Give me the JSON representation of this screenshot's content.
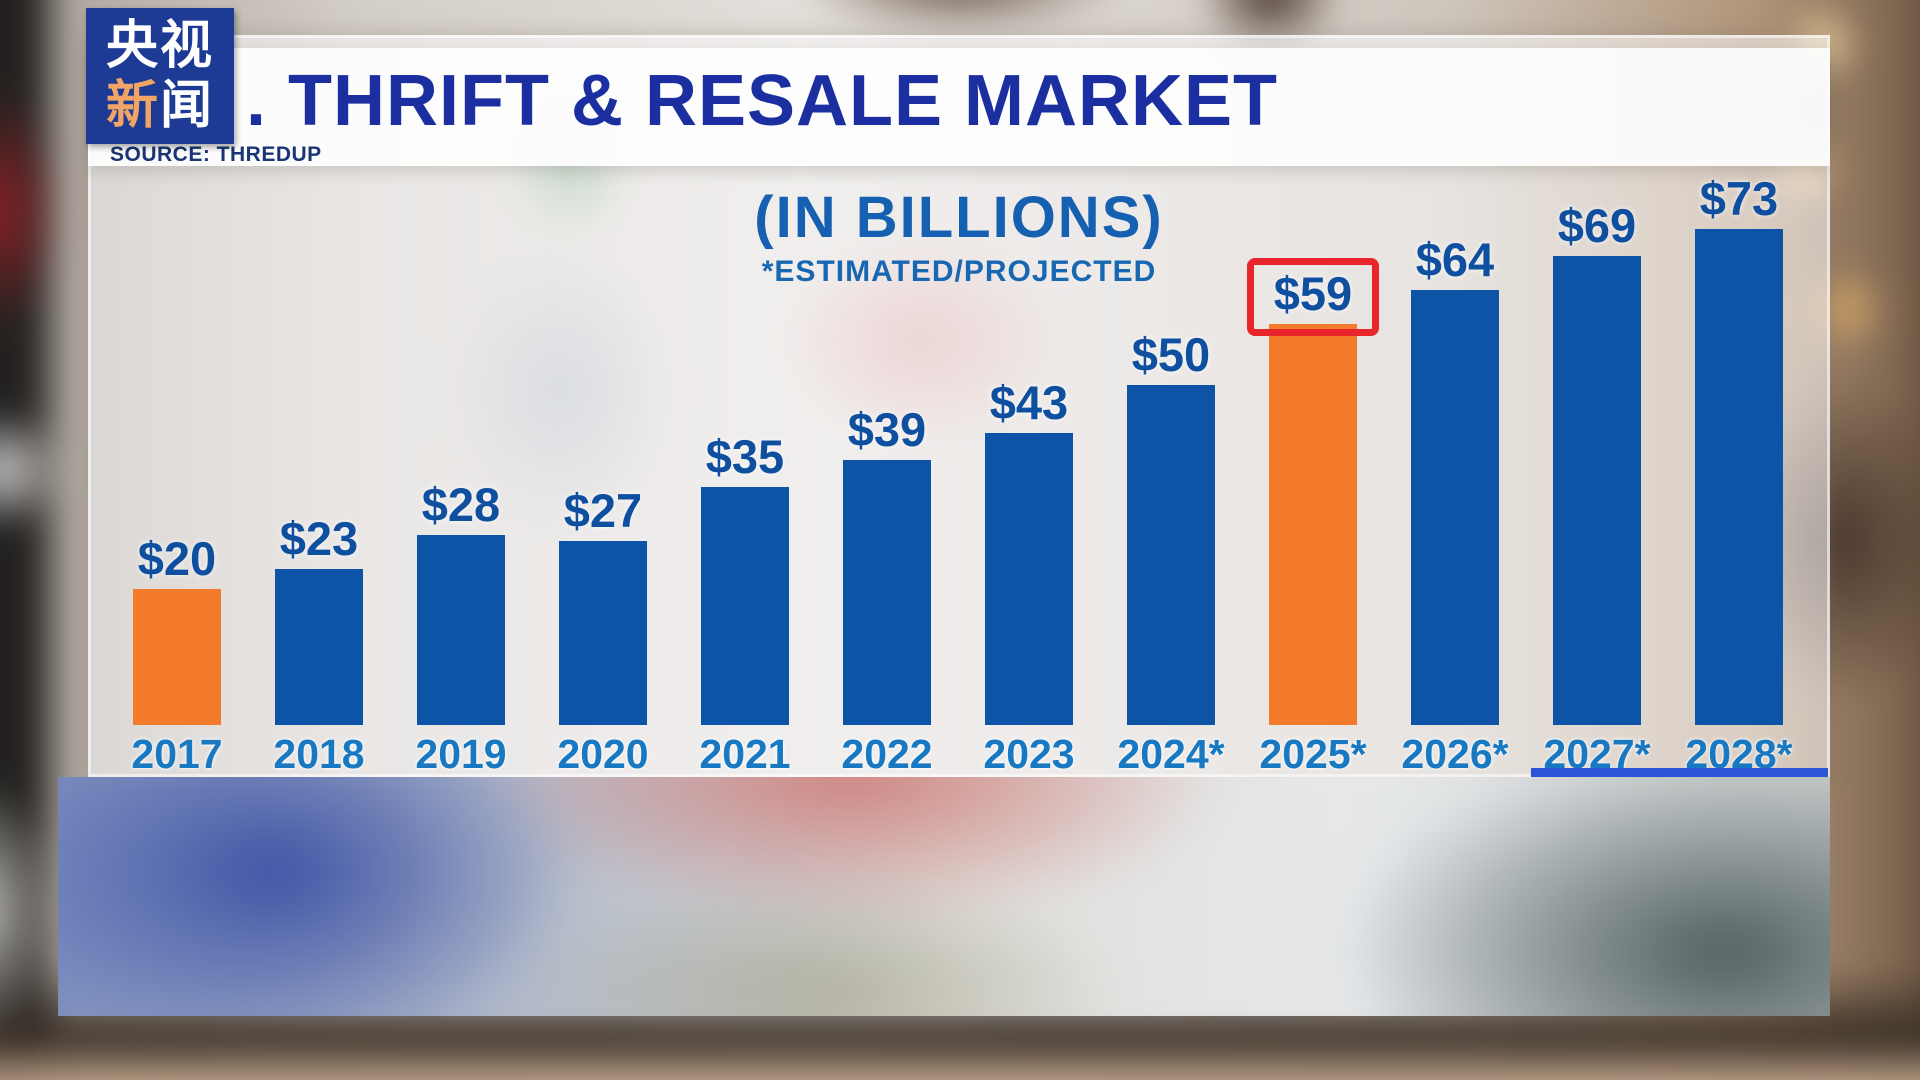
{
  "logo": {
    "line1": "央视",
    "line2_orange": "新",
    "line2_white": "闻"
  },
  "header": {
    "title": ". THRIFT & RESALE MARKET",
    "source": "SOURCE: THREDUP"
  },
  "chart_data": {
    "type": "bar",
    "title": "(IN BILLIONS)",
    "subtitle": "*ESTIMATED/PROJECTED",
    "unit": "USD billions",
    "categories": [
      "2017",
      "2018",
      "2019",
      "2020",
      "2021",
      "2022",
      "2023",
      "2024*",
      "2025*",
      "2026*",
      "2027*",
      "2028*"
    ],
    "values": [
      20,
      23,
      28,
      27,
      35,
      39,
      43,
      50,
      59,
      64,
      69,
      73
    ],
    "value_labels": [
      "$20",
      "$23",
      "$28",
      "$27",
      "$35",
      "$39",
      "$43",
      "$50",
      "$59",
      "$64",
      "$69",
      "$73"
    ],
    "highlight_indices": [
      0,
      8
    ],
    "boxed_index": 8,
    "ylim": [
      0,
      80
    ],
    "grid": false,
    "legend": false,
    "colors": {
      "bar": "#0d53a6",
      "highlight": "#f47b2c",
      "value_label": "#0f4fa0",
      "year_label": "#1878c2",
      "box_outline": "#e8252b",
      "title_blue": "#1c2fa0",
      "logo_background": "#1d3b94",
      "logo_orange": "#f0a465"
    }
  }
}
